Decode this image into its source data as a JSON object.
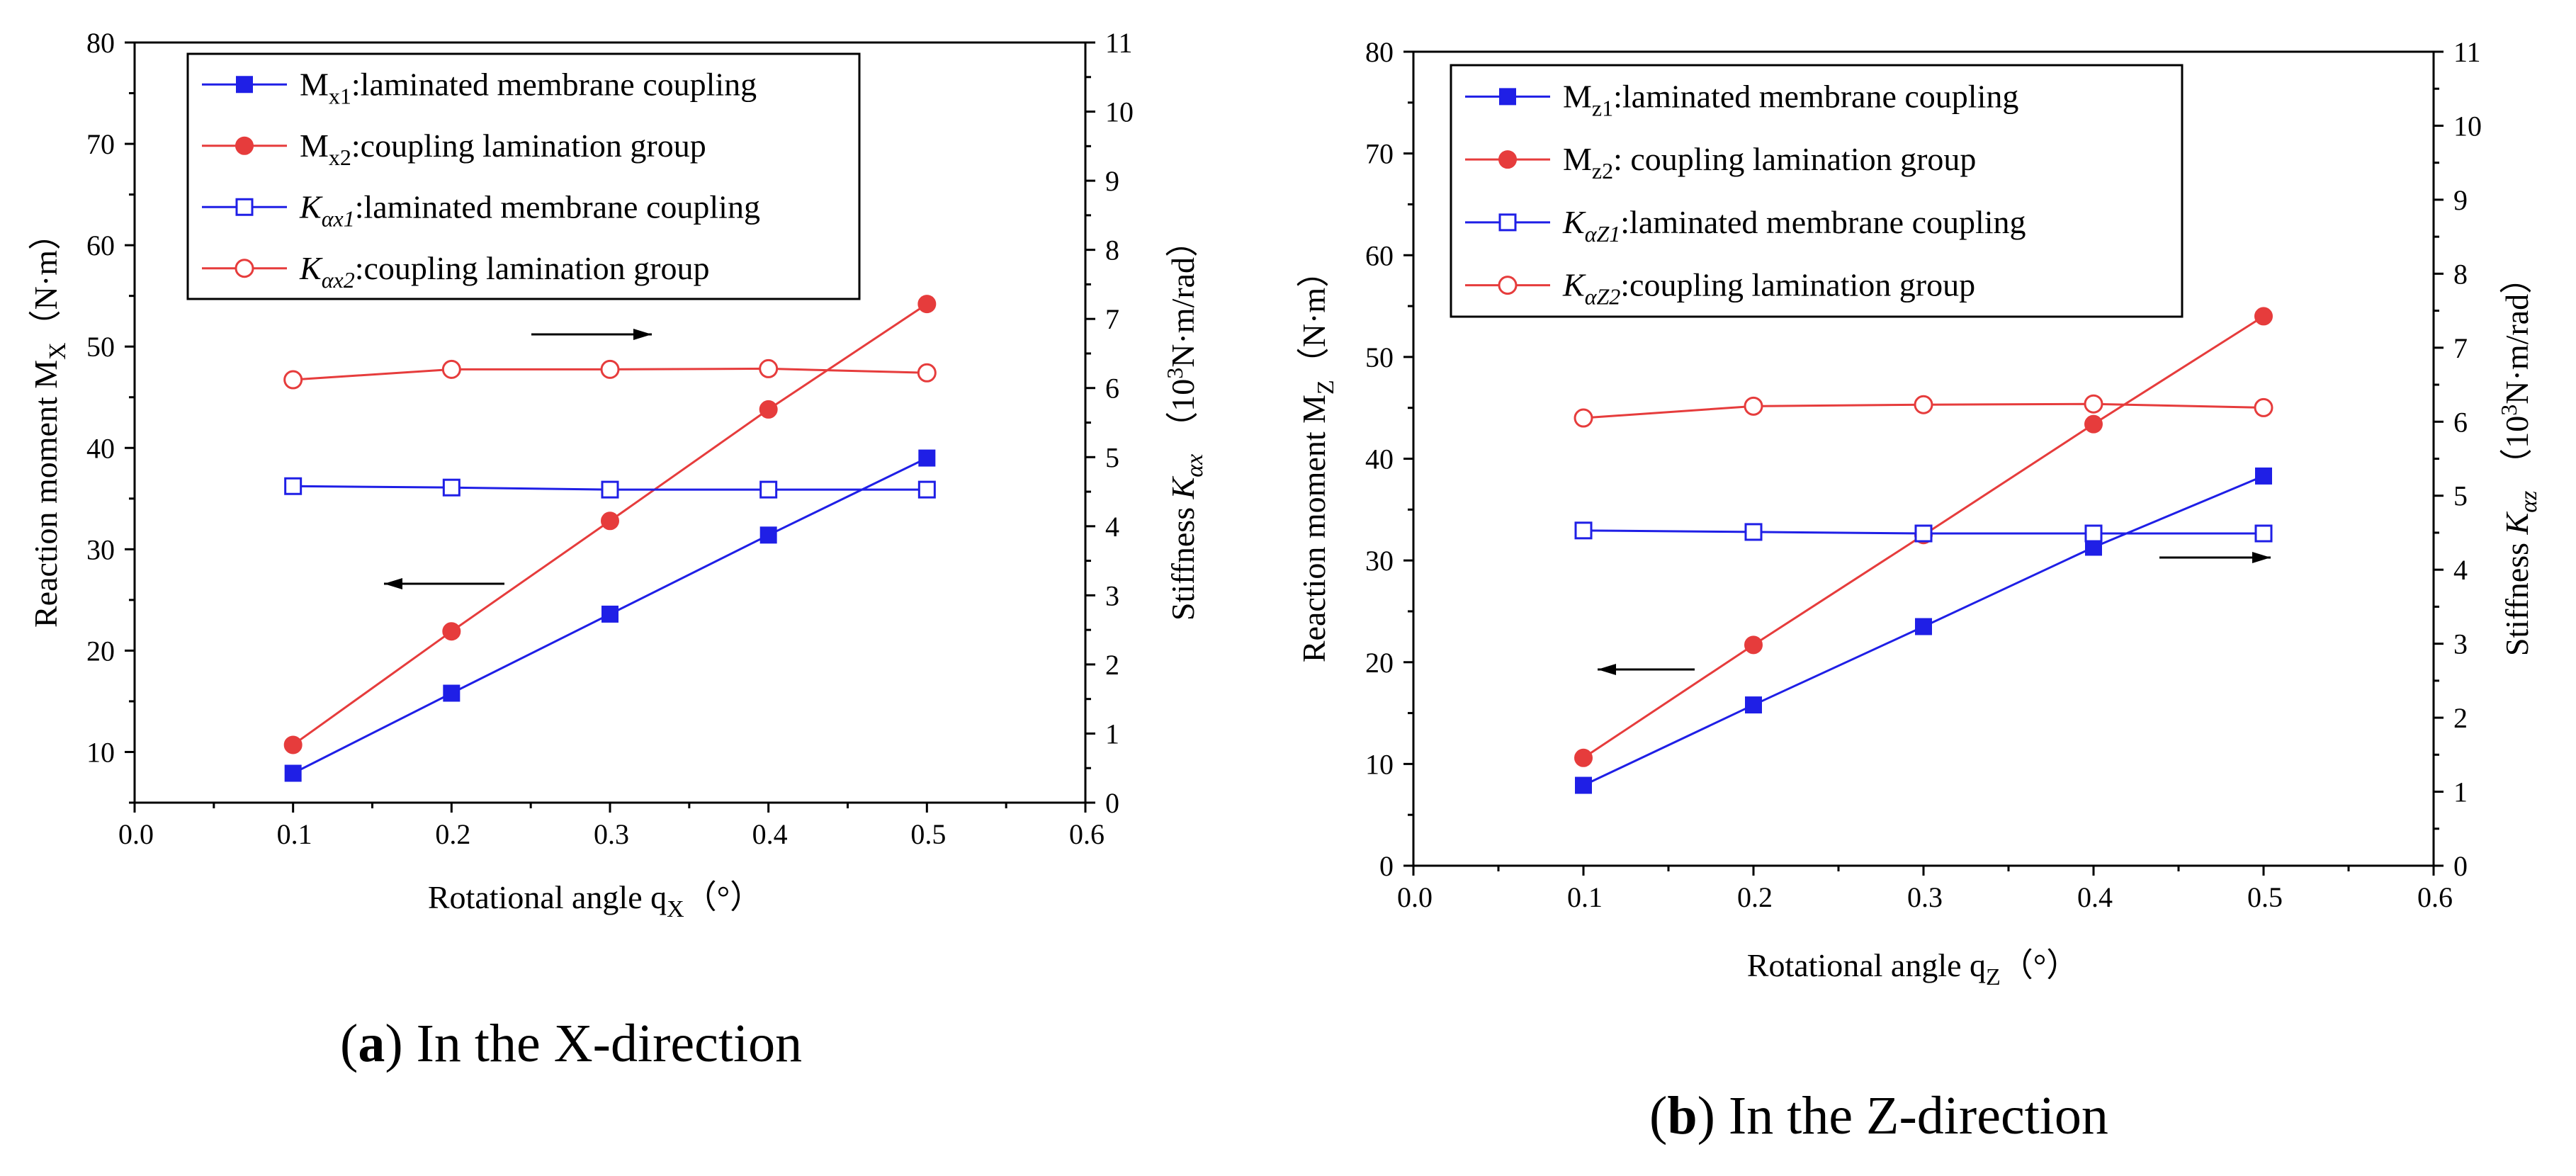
{
  "figure": {
    "caption_a_paren_open": "(",
    "caption_a_letter": "a",
    "caption_a_text": ") In the X-direction",
    "caption_b_paren_open": "(",
    "caption_b_letter": "b",
    "caption_b_text": ") In the Z-direction"
  },
  "colors": {
    "blue": "#1f1fe6",
    "red": "#e63c3c",
    "axis": "#000000"
  },
  "chart_data": [
    {
      "id": "a",
      "type": "line",
      "title": "",
      "xlabel": "Rotational angle q",
      "xlabel_sub": "X",
      "xlabel_tail": "（°）",
      "ylabel": "Reaction moment M",
      "ylabel_sub": "X",
      "ylabel_tail": "（N·m）",
      "y2label": "Stiffness ",
      "y2label_k": "K",
      "y2label_sub": "αx",
      "y2label_unit_a": "（10",
      "y2label_unit_sup": "3",
      "y2label_unit_b": "N·m/rad）",
      "xlim": [
        0.0,
        0.6
      ],
      "ylim": [
        5,
        80
      ],
      "y2lim": [
        0,
        11
      ],
      "xticks": [
        "0.0",
        "0.1",
        "0.2",
        "0.3",
        "0.4",
        "0.5",
        "0.6"
      ],
      "yticks": [
        "10",
        "20",
        "30",
        "40",
        "50",
        "60",
        "70",
        "80"
      ],
      "y2ticks": [
        "0",
        "1",
        "2",
        "3",
        "4",
        "5",
        "6",
        "7",
        "8",
        "9",
        "10",
        "11"
      ],
      "x": [
        0.1,
        0.2,
        0.3,
        0.4,
        0.5
      ],
      "series": [
        {
          "name": "M",
          "sub": "x1",
          "label": ":laminated membrane coupling",
          "axis": "left",
          "color": "blue",
          "marker": "filled-square",
          "values": [
            7.9,
            15.8,
            23.6,
            31.4,
            39.0
          ]
        },
        {
          "name": "M",
          "sub": "x2",
          "label": ":coupling lamination group",
          "axis": "left",
          "color": "red",
          "marker": "filled-circle",
          "values": [
            10.7,
            21.9,
            32.8,
            43.8,
            54.2
          ]
        },
        {
          "name": "K",
          "sub": "αx1",
          "label": ":laminated membrane coupling",
          "axis": "right",
          "color": "blue",
          "marker": "open-square",
          "values": [
            4.58,
            4.56,
            4.53,
            4.53,
            4.53
          ]
        },
        {
          "name": "K",
          "sub": "αx2",
          "label": ":coupling lamination group",
          "axis": "right",
          "color": "red",
          "marker": "open-circle",
          "values": [
            6.12,
            6.27,
            6.27,
            6.28,
            6.22
          ]
        }
      ],
      "legend_position": "top-left",
      "annotations": [
        "arrow right pointing to right axis",
        "arrow left pointing to left axis"
      ]
    },
    {
      "id": "b",
      "type": "line",
      "title": "",
      "xlabel": "Rotational angle q",
      "xlabel_sub": "Z",
      "xlabel_tail": "（°）",
      "ylabel": "Reaction moment M",
      "ylabel_sub": "Z",
      "ylabel_tail": "（N·m）",
      "y2label": "Stiffness ",
      "y2label_k": "K",
      "y2label_sub": "αz",
      "y2label_unit_a": "（10",
      "y2label_unit_sup": "3",
      "y2label_unit_b": "N·m/rad）",
      "xlim": [
        0.0,
        0.6
      ],
      "ylim": [
        0,
        80
      ],
      "y2lim": [
        0,
        11
      ],
      "xticks": [
        "0.0",
        "0.1",
        "0.2",
        "0.3",
        "0.4",
        "0.5",
        "0.6"
      ],
      "yticks": [
        "0",
        "10",
        "20",
        "30",
        "40",
        "50",
        "60",
        "70",
        "80"
      ],
      "y2ticks": [
        "0",
        "1",
        "2",
        "3",
        "4",
        "5",
        "6",
        "7",
        "8",
        "9",
        "10",
        "11"
      ],
      "x": [
        0.1,
        0.2,
        0.3,
        0.4,
        0.5
      ],
      "series": [
        {
          "name": "M",
          "sub": "z1",
          "label": ":laminated membrane coupling",
          "axis": "left",
          "color": "blue",
          "marker": "filled-square",
          "values": [
            7.9,
            15.8,
            23.5,
            31.3,
            38.3
          ]
        },
        {
          "name": "M",
          "sub": "z2",
          "label": ": coupling lamination group",
          "axis": "left",
          "color": "red",
          "marker": "filled-circle",
          "values": [
            10.6,
            21.7,
            32.5,
            43.4,
            54.0
          ]
        },
        {
          "name": "K",
          "sub": "αZ1",
          "label": ":laminated membrane coupling",
          "axis": "right",
          "color": "blue",
          "marker": "open-square",
          "values": [
            4.53,
            4.51,
            4.49,
            4.49,
            4.49
          ]
        },
        {
          "name": "K",
          "sub": "αZ2",
          "label": ":coupling lamination group",
          "axis": "right",
          "color": "red",
          "marker": "open-circle",
          "values": [
            6.05,
            6.21,
            6.23,
            6.24,
            6.19
          ]
        }
      ],
      "legend_position": "top-left",
      "annotations": [
        "arrow right pointing to right axis",
        "arrow left pointing to left axis"
      ]
    }
  ]
}
